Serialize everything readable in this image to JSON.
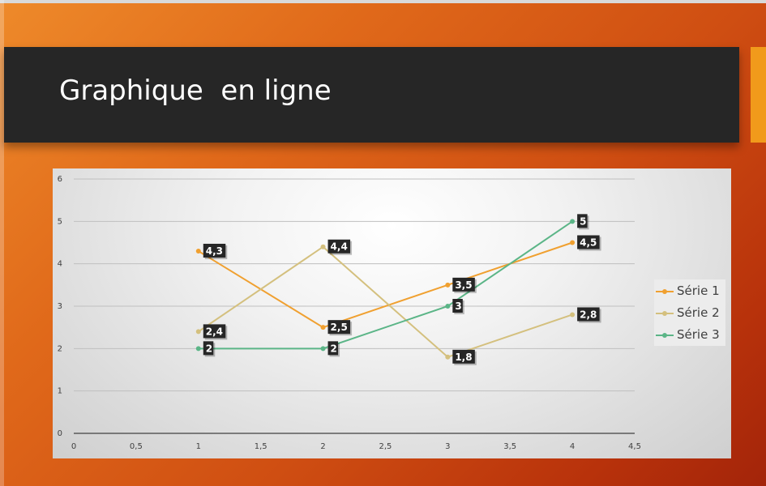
{
  "slide": {
    "title": "Graphique  en ligne",
    "colors": {
      "background": "#d85a15",
      "title_bar": "#262626",
      "accent": "#f19a1b"
    }
  },
  "chart_data": {
    "type": "line",
    "title": "",
    "xlabel": "",
    "ylabel": "",
    "xlim": [
      0,
      4.5
    ],
    "ylim": [
      0,
      6
    ],
    "x_ticks": [
      "0",
      "0,5",
      "1",
      "1,5",
      "2",
      "2,5",
      "3",
      "3,5",
      "4",
      "4,5"
    ],
    "y_ticks": [
      "0",
      "1",
      "2",
      "3",
      "4",
      "5",
      "6"
    ],
    "grid": true,
    "legend_position": "right",
    "x": [
      1,
      2,
      3,
      4
    ],
    "series": [
      {
        "name": "Série 1",
        "color": "#f0a030",
        "values": [
          4.3,
          2.5,
          3.5,
          4.5
        ],
        "labels": [
          "4,3",
          "2,5",
          "3,5",
          "4,5"
        ]
      },
      {
        "name": "Série 2",
        "color": "#d4c07e",
        "values": [
          2.4,
          4.4,
          1.8,
          2.8
        ],
        "labels": [
          "2,4",
          "4,4",
          "1,8",
          "2,8"
        ]
      },
      {
        "name": "Série 3",
        "color": "#5bb587",
        "values": [
          2,
          2,
          3,
          5
        ],
        "labels": [
          "2",
          "2",
          "3",
          "5"
        ]
      }
    ]
  }
}
